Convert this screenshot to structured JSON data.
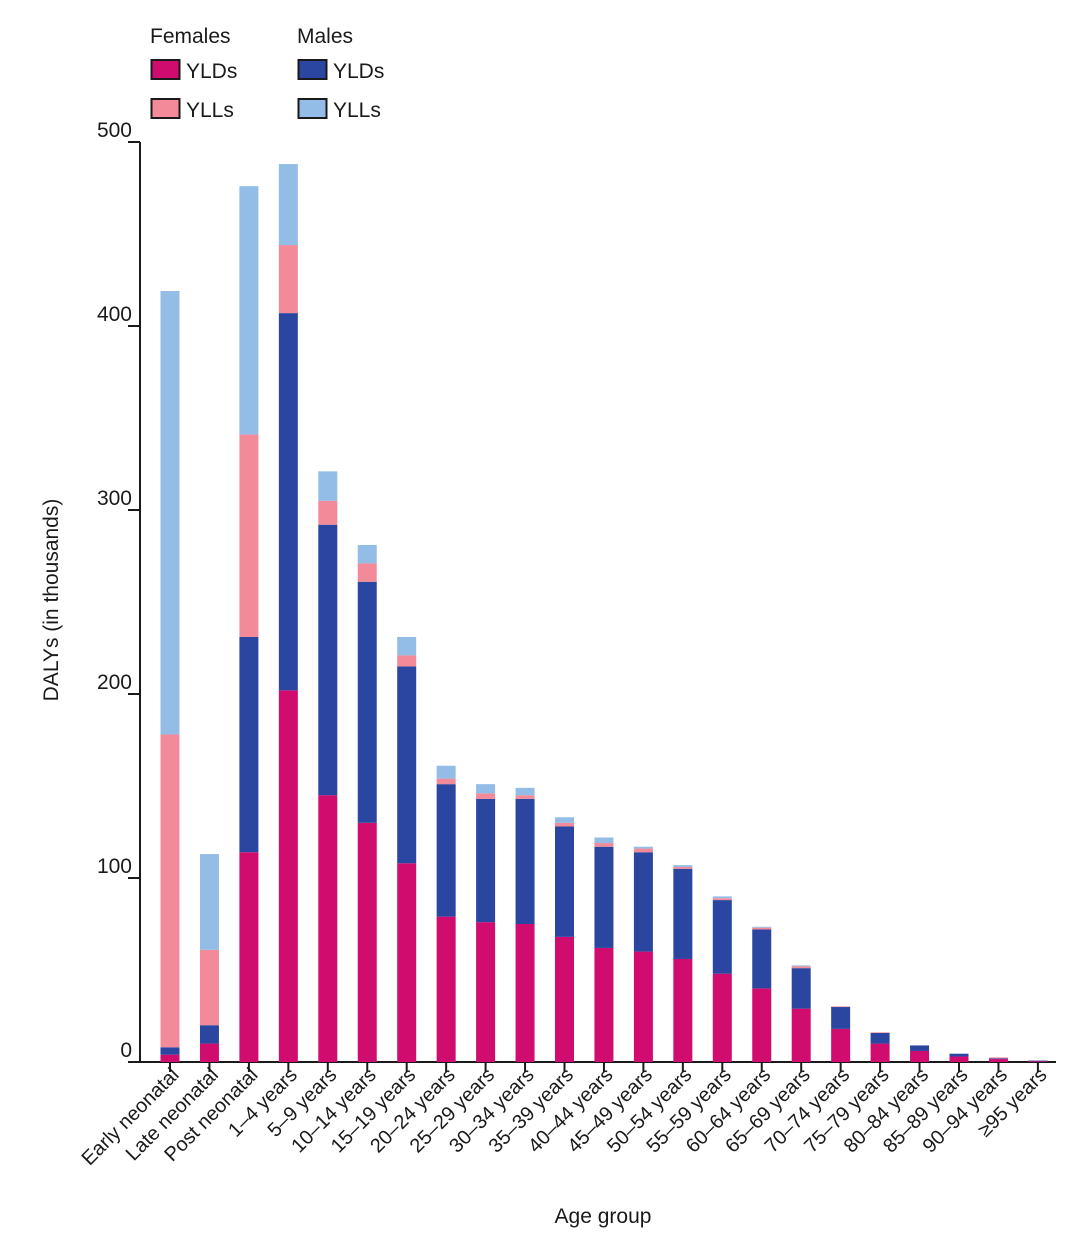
{
  "legend": {
    "groups": [
      {
        "title": "Females",
        "items": [
          {
            "label": "YLDs",
            "color": "#d00c6e"
          },
          {
            "label": "YLLs",
            "color": "#f38a99"
          }
        ]
      },
      {
        "title": "Males",
        "items": [
          {
            "label": "YLDs",
            "color": "#2a46a0"
          },
          {
            "label": "YLLs",
            "color": "#93bce6"
          }
        ]
      }
    ]
  },
  "chart_data": {
    "type": "bar",
    "stacked": true,
    "xlabel": "Age group",
    "ylabel": "DALYs (in thousands)",
    "ylim": [
      0,
      500
    ],
    "yticks": [
      0,
      100,
      200,
      300,
      400,
      500
    ],
    "grid": false,
    "legend_position": "top-left",
    "categories": [
      "Early neonatal",
      "Late neonatal",
      "Post neonatal",
      "1–4 years",
      "5–9 years",
      "10–14 years",
      "15–19 years",
      "20–24 years",
      "25–29 years",
      "30–34 years",
      "35–39 years",
      "40–44 years",
      "45–49 years",
      "50–54 years",
      "55–59 years",
      "60–64 years",
      "65–69 years",
      "70–74 years",
      "75–79 years",
      "80–84 years",
      "85–89 years",
      "90–94 years",
      "≥95 years"
    ],
    "series": [
      {
        "name": "Females YLDs",
        "color": "#d00c6e",
        "values": [
          4,
          10,
          114,
          202,
          145,
          130,
          108,
          79,
          76,
          75,
          68,
          62,
          60,
          56,
          48,
          40,
          29,
          18,
          10,
          6,
          3,
          1.6,
          0.6
        ]
      },
      {
        "name": "Males YLDs",
        "color": "#2a46a0",
        "values": [
          4,
          10,
          117,
          205,
          147,
          131,
          107,
          72,
          67,
          68,
          60,
          55,
          54,
          49,
          40,
          32,
          22,
          12,
          6,
          3,
          1.5,
          0.4,
          0.1
        ]
      },
      {
        "name": "Females YLLs",
        "color": "#f38a99",
        "values": [
          170,
          41,
          110,
          37,
          13,
          10,
          6,
          3,
          3,
          2,
          2,
          2,
          2,
          1,
          1,
          1,
          1,
          0.2,
          0.1,
          0,
          0,
          0.5,
          0.2
        ]
      },
      {
        "name": "Males YLLs",
        "color": "#93bce6",
        "values": [
          241,
          52,
          135,
          44,
          16,
          10,
          10,
          7,
          5,
          4,
          3,
          3,
          1,
          1,
          1,
          0.5,
          0.5,
          0,
          0,
          0,
          0,
          0,
          0.2
        ]
      }
    ]
  }
}
